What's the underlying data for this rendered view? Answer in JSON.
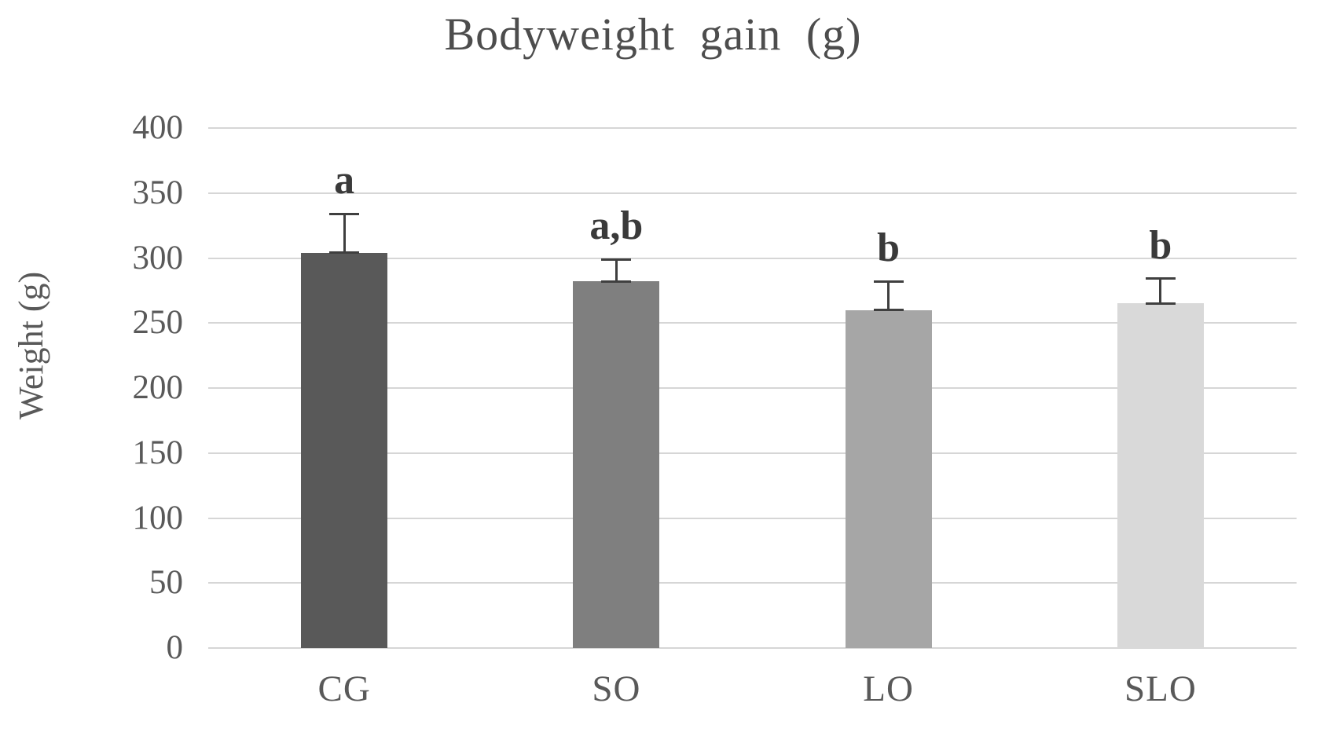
{
  "chart_data": {
    "type": "bar",
    "title": "Bodyweight gain (g)",
    "xlabel": "",
    "ylabel": "Weight (g)",
    "categories": [
      "CG",
      "SO",
      "LO",
      "SLO"
    ],
    "values": [
      304,
      282,
      260,
      265
    ],
    "errors_plus": [
      30,
      17,
      22,
      19
    ],
    "sig_labels": [
      "a",
      "a,b",
      "b",
      "b"
    ],
    "bar_colors": [
      "#595959",
      "#7f7f7f",
      "#a6a6a6",
      "#d9d9d9"
    ],
    "ylim": [
      0,
      400
    ],
    "yticks": [
      0,
      50,
      100,
      150,
      200,
      250,
      300,
      350,
      400
    ],
    "grid": true,
    "legend": "none",
    "gridline_color": "#d6d6d6",
    "axis_text_color": "#595959",
    "title_color": "#4d4d4d",
    "error_bar_color": "#3f3f3f",
    "sig_label_color": "#3a3a3a"
  }
}
